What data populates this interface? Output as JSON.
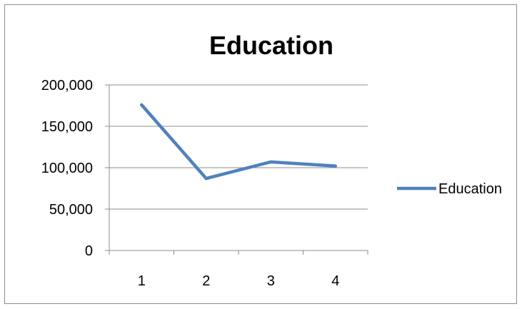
{
  "chart_data": {
    "type": "line",
    "title": "Education",
    "categories": [
      "1",
      "2",
      "3",
      "4"
    ],
    "series": [
      {
        "name": "Education",
        "values": [
          176000,
          87000,
          107000,
          102000
        ],
        "color": "#4f81bd"
      }
    ],
    "xlabel": "",
    "ylabel": "",
    "ylim": [
      0,
      200000
    ],
    "yticks": [
      "0",
      "50,000",
      "100,000",
      "150,000",
      "200,000"
    ],
    "grid": "horizontal",
    "legend_position": "right"
  }
}
